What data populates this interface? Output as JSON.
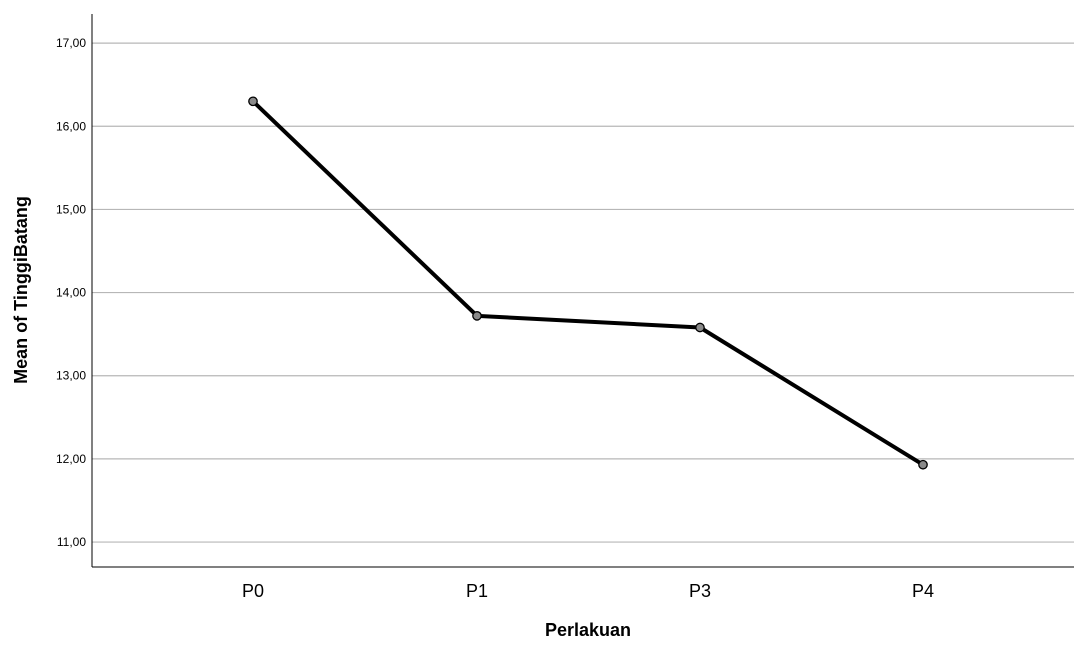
{
  "chart_data": {
    "type": "line",
    "xlabel": "Perlakuan",
    "ylabel": "Mean of TinggiBatang",
    "categories": [
      "P0",
      "P1",
      "P3",
      "P4"
    ],
    "series": [
      {
        "values": [
          16.3,
          13.72,
          13.58,
          11.93
        ]
      }
    ],
    "ylim": [
      10.7,
      17.35
    ],
    "yticks": [
      11,
      12,
      13,
      14,
      15,
      16,
      17
    ],
    "ytick_labels": [
      "11,00",
      "12,00",
      "13,00",
      "14,00",
      "15,00",
      "16,00",
      "17,00"
    ],
    "grid": true,
    "legend": "none"
  },
  "colors": {
    "line": "#000000",
    "marker_fill": "#8a8a8a",
    "gridline": "#b7b7b7"
  }
}
